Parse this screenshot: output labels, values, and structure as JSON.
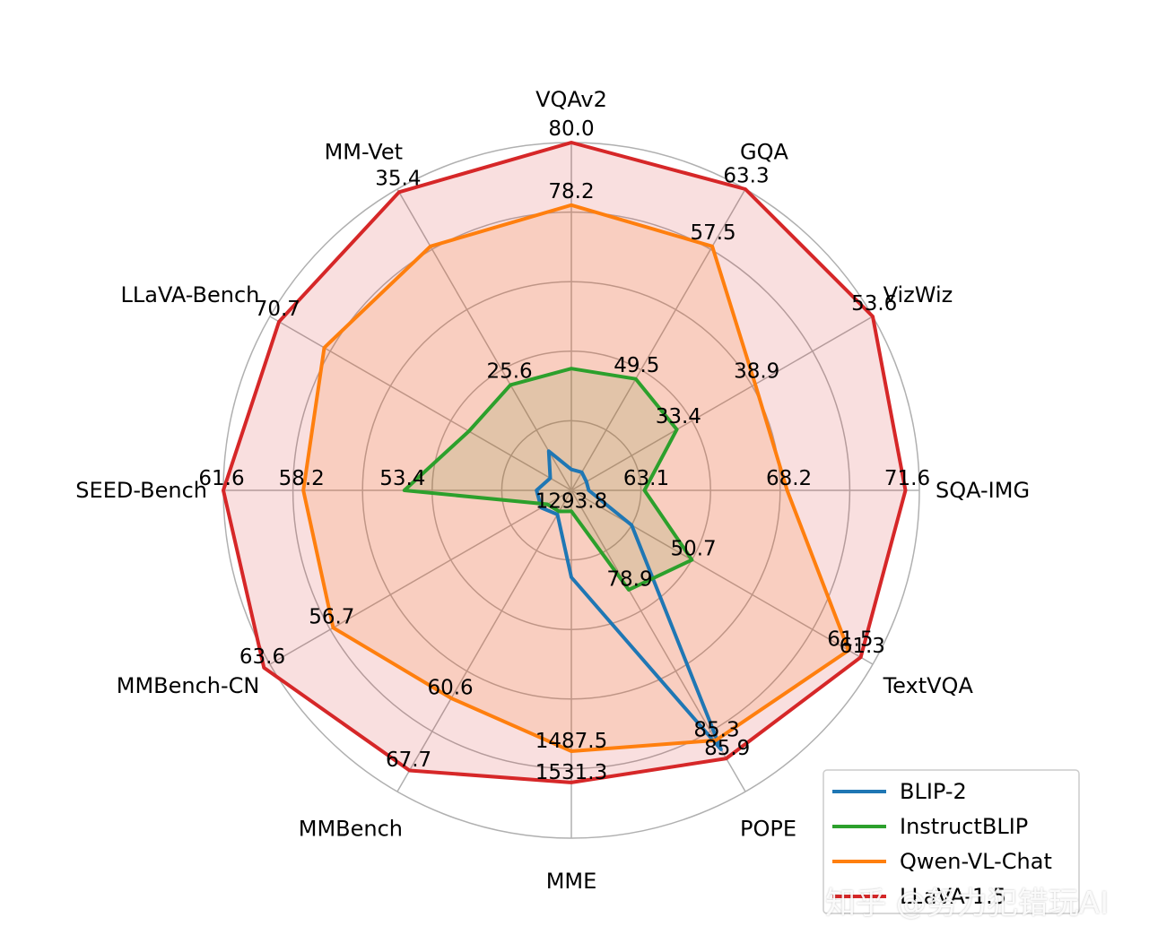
{
  "watermark": "知乎 @努力犯错玩AI",
  "chart_data": {
    "type": "radar",
    "axes": [
      "VQAv2",
      "GQA",
      "VizWiz",
      "SQA-IMG",
      "TextVQA",
      "POPE",
      "MME",
      "MMBench",
      "MMBench-CN",
      "SEED-Bench",
      "LLaVA-Bench",
      "MM-Vet"
    ],
    "grid": true,
    "legend_position": "bottom-right",
    "series": [
      {
        "name": "BLIP-2",
        "color": "#1f77b4",
        "fill": false,
        "show_labels": false,
        "values": [
          0.06,
          0.06,
          0.05,
          0.05,
          0.2,
          0.86,
          0.25,
          0.08,
          0.1,
          0.1,
          0.07,
          0.13
        ]
      },
      {
        "name": "InstructBLIP",
        "color": "#2ca02c",
        "fill": true,
        "values": [
          0.35,
          0.37,
          0.35,
          0.21,
          0.4,
          0.33,
          0.06,
          0.07,
          0.08,
          0.48,
          0.34,
          0.35
        ],
        "labels": [
          "",
          "49.5",
          "33.4",
          "63.1",
          "50.7",
          "78.9",
          "1293.8",
          "",
          "",
          "53.4",
          "",
          "25.6"
        ]
      },
      {
        "name": "Qwen-VL-Chat",
        "color": "#ff7f0e",
        "fill": true,
        "values": [
          0.82,
          0.81,
          0.61,
          0.62,
          0.92,
          0.83,
          0.75,
          0.69,
          0.79,
          0.77,
          0.82,
          0.81
        ],
        "labels": [
          "78.2",
          "57.5",
          "38.9",
          "68.2",
          "61.5",
          "85.3",
          "1487.5",
          "60.6",
          "56.7",
          "58.2",
          "",
          ""
        ]
      },
      {
        "name": "LLaVA-1.5",
        "color": "#d62728",
        "fill": true,
        "values": [
          1.0,
          1.0,
          1.0,
          0.96,
          0.96,
          0.89,
          0.84,
          0.93,
          1.02,
          1.0,
          0.97,
          0.99
        ],
        "labels": [
          "80.0",
          "63.3",
          "53.6",
          "71.6",
          "61.3",
          "85.9",
          "1531.3",
          "67.7",
          "63.6",
          "61.6",
          "70.7",
          "35.4"
        ]
      }
    ]
  }
}
